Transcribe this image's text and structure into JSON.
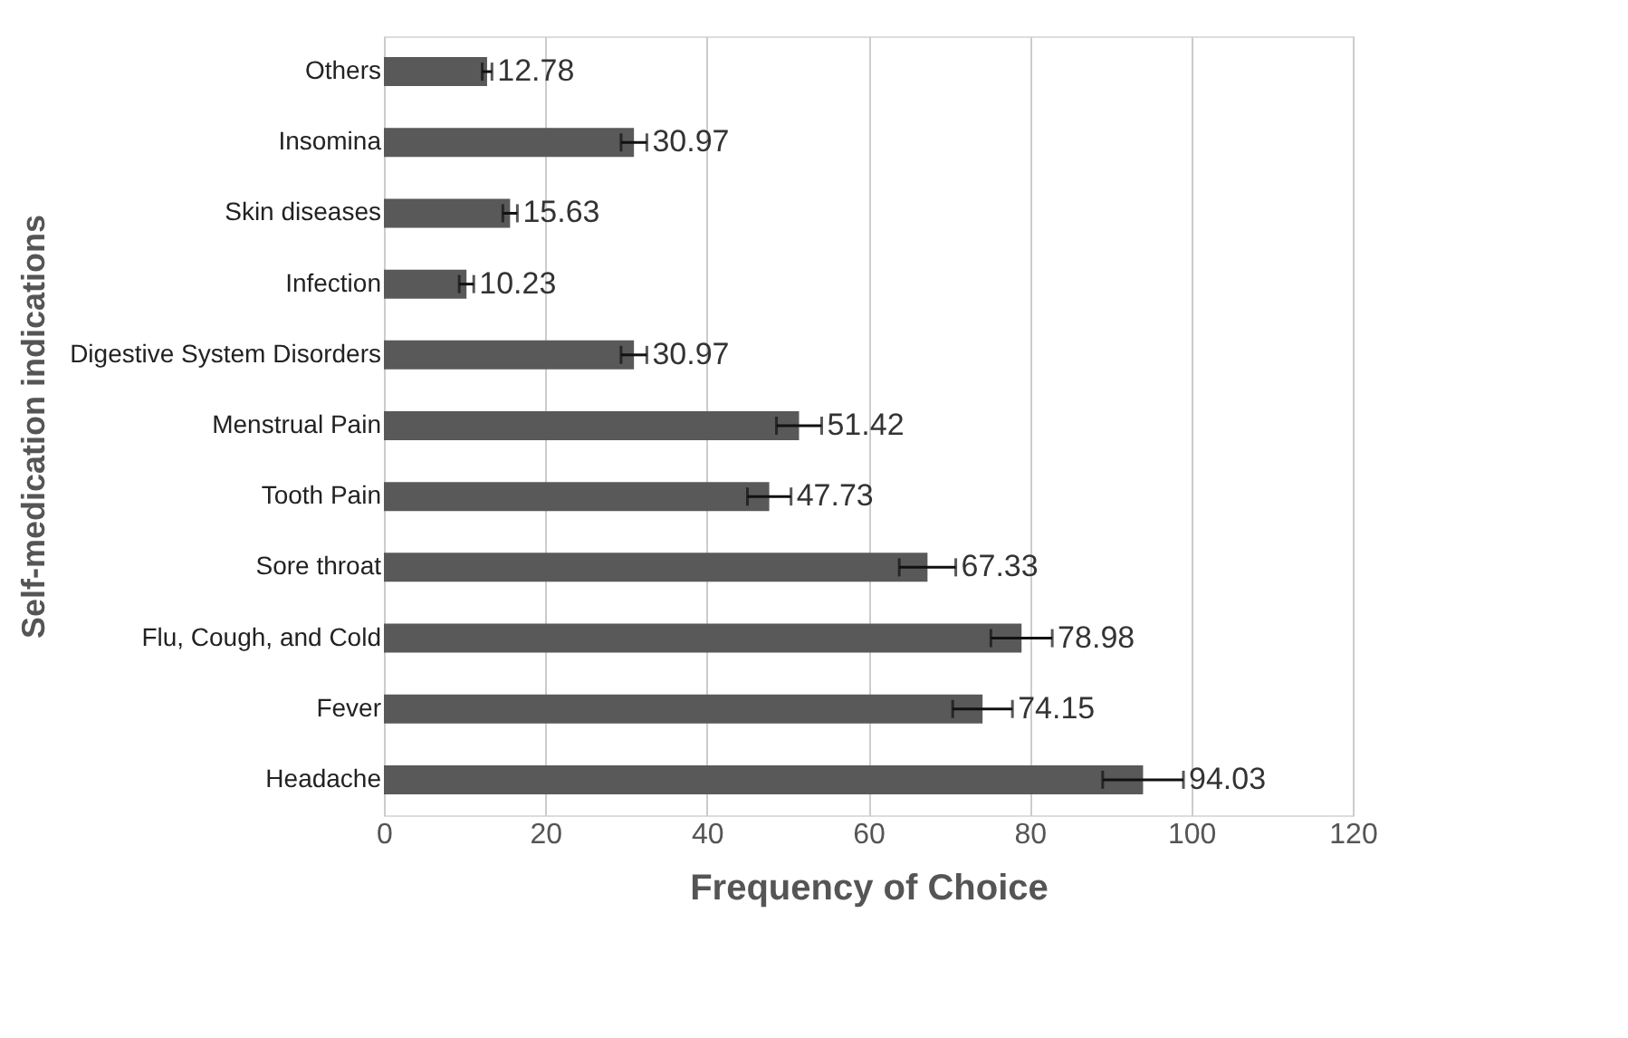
{
  "chart_data": {
    "type": "bar",
    "orientation": "horizontal",
    "xlabel": "Frequency of Choice",
    "ylabel": "Self-medication indications",
    "categories": [
      "Others",
      "Insomina",
      "Skin diseases",
      "Infection",
      "Digestive System Disorders",
      "Menstrual Pain",
      "Tooth Pain",
      "Sore throat",
      "Flu, Cough, and Cold",
      "Fever",
      "Headache"
    ],
    "values": [
      12.78,
      30.97,
      15.63,
      10.23,
      30.97,
      51.42,
      47.73,
      67.33,
      78.98,
      74.15,
      94.03
    ],
    "errors": [
      0.6,
      1.6,
      0.9,
      0.9,
      1.6,
      2.8,
      2.7,
      3.5,
      3.8,
      3.7,
      5
    ],
    "color": "#595959",
    "xlim": [
      0,
      120
    ],
    "xticks": [
      0,
      20,
      40,
      60,
      80,
      100,
      120
    ],
    "grid": "x",
    "data_labels": true
  }
}
